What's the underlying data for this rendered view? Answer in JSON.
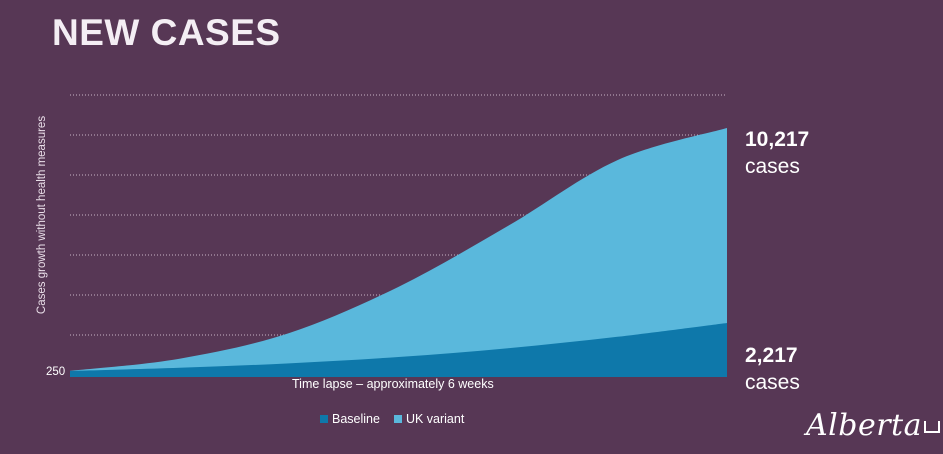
{
  "title": "NEW CASES",
  "logo_text": "Alberta",
  "colors": {
    "background": "#573755",
    "baseline": "#0e78aa",
    "uk_variant": "#5ab8dc",
    "gridline": "#c9b6c8"
  },
  "chart_data": {
    "type": "area",
    "stacked": false,
    "title": "",
    "xlabel": "Time lapse – approximately 6 weeks",
    "ylabel": "Cases growth without health measures",
    "y_start_label": "250",
    "grid": true,
    "legend": "bottom",
    "series": [
      {
        "name": "Baseline",
        "color": "#0e78aa",
        "x": [
          0,
          1,
          2,
          3,
          4,
          5,
          6
        ],
        "values": [
          250,
          380,
          560,
          820,
          1180,
          1650,
          2217
        ],
        "end_label": "2,217",
        "end_unit": "cases"
      },
      {
        "name": "UK variant",
        "color": "#5ab8dc",
        "x": [
          0,
          1,
          2,
          3,
          4,
          5,
          6
        ],
        "values": [
          250,
          750,
          1800,
          3700,
          6200,
          8900,
          10217
        ],
        "end_label": "10,217",
        "end_unit": "cases"
      }
    ]
  }
}
